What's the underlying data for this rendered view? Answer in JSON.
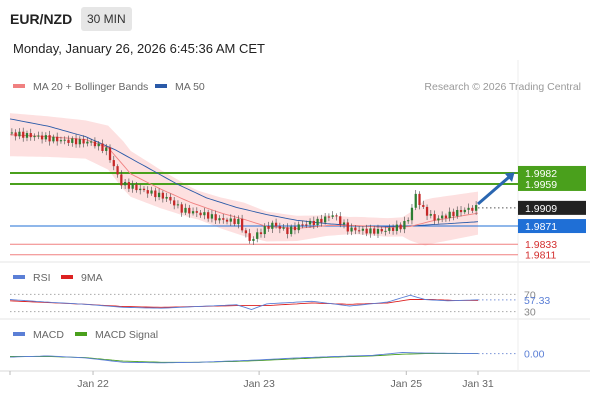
{
  "header": {
    "symbol": "EUR/NZD",
    "timeframe": "30 MIN",
    "datetime": "Monday, January 26, 2026 6:45:36 AM CET"
  },
  "colors": {
    "ma20": "#f08080",
    "ma50": "#2a5aa8",
    "bands_fill": "#fde0e0",
    "support_resistance_green": "#4aa01c",
    "pivot_blue": "#1f6fd6",
    "support_red": "#f08080",
    "current_price": "#222222",
    "rsi": "#5b7fd6",
    "rsi_ma": "#dd2222",
    "macd": "#5b7fd6",
    "macd_signal": "#4aa01c",
    "candle_up": "#2e7d32",
    "candle_down": "#c62828",
    "arrow": "#2a66b0"
  },
  "chart_data": [
    {
      "type": "candlestick",
      "panel": "price",
      "legend": [
        {
          "label": "MA 20 + Bollinger Bands",
          "color_key": "ma20"
        },
        {
          "label": "MA 50",
          "color_key": "ma50"
        }
      ],
      "credit": "Research © 2026 Trading Central",
      "x_ticks": [
        "Jan 22",
        "Jan 23",
        "Jan 25",
        "Jan 31"
      ],
      "x_tick_index": [
        22,
        66,
        105,
        124
      ],
      "bars": 124,
      "current_price": "1.9909",
      "levels": [
        {
          "label": "1.9982",
          "value": 1.9982,
          "kind": "resistance",
          "color_key": "support_resistance_green",
          "boxed": true
        },
        {
          "label": "1.9959",
          "value": 1.9959,
          "kind": "resistance",
          "color_key": "support_resistance_green",
          "boxed": true
        },
        {
          "label": "1.9871",
          "value": 1.9871,
          "kind": "pivot",
          "color_key": "pivot_blue",
          "boxed": true
        },
        {
          "label": "1.9833",
          "value": 1.9833,
          "kind": "support",
          "color_key": "support_red",
          "boxed": false
        },
        {
          "label": "1.9811",
          "value": 1.9811,
          "kind": "support",
          "color_key": "support_red",
          "boxed": false
        }
      ],
      "close_keypoints": [
        [
          0,
          2.0065
        ],
        [
          8,
          2.0058
        ],
        [
          14,
          2.005
        ],
        [
          22,
          2.0046
        ],
        [
          26,
          2.003
        ],
        [
          30,
          1.996
        ],
        [
          36,
          1.9945
        ],
        [
          42,
          1.993
        ],
        [
          46,
          1.9905
        ],
        [
          52,
          1.9895
        ],
        [
          56,
          1.9885
        ],
        [
          61,
          1.988
        ],
        [
          64,
          1.984
        ],
        [
          67,
          1.986
        ],
        [
          70,
          1.9875
        ],
        [
          74,
          1.986
        ],
        [
          78,
          1.9875
        ],
        [
          82,
          1.988
        ],
        [
          86,
          1.9895
        ],
        [
          90,
          1.9865
        ],
        [
          96,
          1.986
        ],
        [
          100,
          1.9862
        ],
        [
          104,
          1.987
        ],
        [
          106,
          1.9885
        ],
        [
          108,
          1.9935
        ],
        [
          110,
          1.9905
        ],
        [
          113,
          1.9885
        ],
        [
          117,
          1.9895
        ],
        [
          121,
          1.9905
        ],
        [
          124,
          1.9909
        ]
      ],
      "ma20_keypoints": [
        [
          0,
          2.0062
        ],
        [
          10,
          2.0058
        ],
        [
          20,
          2.0052
        ],
        [
          26,
          2.0035
        ],
        [
          32,
          1.998
        ],
        [
          40,
          1.9948
        ],
        [
          48,
          1.992
        ],
        [
          56,
          1.9898
        ],
        [
          62,
          1.9885
        ],
        [
          68,
          1.987
        ],
        [
          76,
          1.9866
        ],
        [
          84,
          1.9872
        ],
        [
          92,
          1.9872
        ],
        [
          100,
          1.9868
        ],
        [
          106,
          1.987
        ],
        [
          112,
          1.9882
        ],
        [
          118,
          1.989
        ],
        [
          124,
          1.9898
        ]
      ],
      "ma50_keypoints": [
        [
          0,
          2.0095
        ],
        [
          10,
          2.008
        ],
        [
          20,
          2.0058
        ],
        [
          28,
          2.003
        ],
        [
          36,
          1.9995
        ],
        [
          44,
          1.996
        ],
        [
          52,
          1.993
        ],
        [
          60,
          1.991
        ],
        [
          68,
          1.9895
        ],
        [
          76,
          1.9883
        ],
        [
          84,
          1.9876
        ],
        [
          92,
          1.9871
        ],
        [
          100,
          1.9869
        ],
        [
          108,
          1.9872
        ],
        [
          116,
          1.9876
        ],
        [
          124,
          1.988
        ]
      ],
      "band_width_keypoints": [
        [
          0,
          0.0045
        ],
        [
          20,
          0.004
        ],
        [
          30,
          0.005
        ],
        [
          50,
          0.003
        ],
        [
          62,
          0.0035
        ],
        [
          70,
          0.003
        ],
        [
          90,
          0.0018
        ],
        [
          104,
          0.002
        ],
        [
          110,
          0.0048
        ],
        [
          124,
          0.0045
        ]
      ],
      "price_range": [
        1.98,
        2.0145
      ]
    },
    {
      "type": "line",
      "panel": "rsi",
      "legend": [
        {
          "label": "RSI",
          "color_key": "rsi"
        },
        {
          "label": "9MA",
          "color_key": "rsi_ma"
        }
      ],
      "ticks": [
        {
          "label": "70",
          "value": 70
        },
        {
          "label": "30",
          "value": 30
        }
      ],
      "current_label": "57.33",
      "current_value": 57.33,
      "ylim": [
        20,
        80
      ],
      "rsi_keypoints": [
        [
          0,
          58
        ],
        [
          10,
          52
        ],
        [
          20,
          47
        ],
        [
          30,
          40
        ],
        [
          40,
          38
        ],
        [
          50,
          42
        ],
        [
          60,
          46
        ],
        [
          64,
          35
        ],
        [
          68,
          48
        ],
        [
          80,
          54
        ],
        [
          90,
          43
        ],
        [
          100,
          52
        ],
        [
          106,
          68
        ],
        [
          110,
          58
        ],
        [
          116,
          55
        ],
        [
          124,
          57.33
        ]
      ],
      "ma_keypoints": [
        [
          0,
          55
        ],
        [
          10,
          51
        ],
        [
          20,
          47
        ],
        [
          30,
          42
        ],
        [
          40,
          40
        ],
        [
          50,
          42
        ],
        [
          60,
          44
        ],
        [
          68,
          44
        ],
        [
          80,
          50
        ],
        [
          90,
          47
        ],
        [
          100,
          50
        ],
        [
          106,
          58
        ],
        [
          112,
          58
        ],
        [
          118,
          56
        ],
        [
          124,
          56
        ]
      ]
    },
    {
      "type": "line",
      "panel": "macd",
      "legend": [
        {
          "label": "MACD",
          "color_key": "macd"
        },
        {
          "label": "MACD Signal",
          "color_key": "macd_signal"
        }
      ],
      "current_label": "0.00",
      "current_value": 0.0,
      "ylim": [
        -0.005,
        0.003
      ],
      "macd_keypoints": [
        [
          0,
          -0.0012
        ],
        [
          10,
          -0.0008
        ],
        [
          20,
          -0.0015
        ],
        [
          30,
          -0.003
        ],
        [
          40,
          -0.0032
        ],
        [
          50,
          -0.003
        ],
        [
          60,
          -0.0025
        ],
        [
          66,
          -0.0022
        ],
        [
          76,
          -0.0015
        ],
        [
          86,
          -0.001
        ],
        [
          96,
          -0.0006
        ],
        [
          104,
          0.0004
        ],
        [
          110,
          0.0002
        ],
        [
          118,
          0.0001
        ],
        [
          124,
          0.0
        ]
      ],
      "signal_keypoints": [
        [
          0,
          -0.001
        ],
        [
          10,
          -0.001
        ],
        [
          20,
          -0.0014
        ],
        [
          30,
          -0.0026
        ],
        [
          40,
          -0.003
        ],
        [
          50,
          -0.003
        ],
        [
          60,
          -0.0027
        ],
        [
          66,
          -0.0024
        ],
        [
          76,
          -0.0018
        ],
        [
          86,
          -0.0012
        ],
        [
          96,
          -0.0008
        ],
        [
          104,
          -0.0002
        ],
        [
          110,
          0.0
        ],
        [
          118,
          0.0
        ],
        [
          124,
          0.0
        ]
      ]
    }
  ]
}
